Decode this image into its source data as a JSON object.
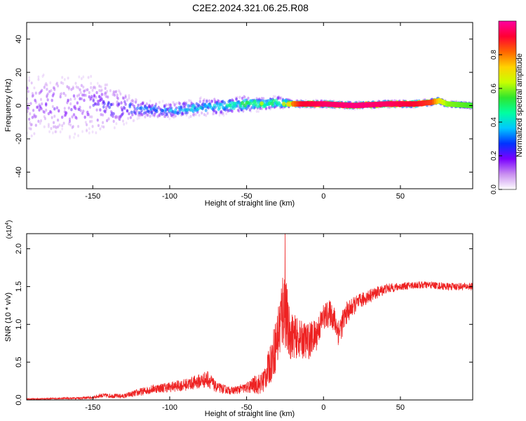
{
  "figure": {
    "title": "C2E2.2024.321.06.25.R08"
  },
  "chart_data": [
    {
      "type": "heatmap",
      "xlabel": "Height of straight line (km)",
      "ylabel": "Frequency (Hz)",
      "xlim": [
        -193,
        97
      ],
      "ylim": [
        -50,
        50
      ],
      "x_ticks": [
        -150,
        -100,
        -50,
        0,
        50
      ],
      "y_ticks": [
        -40,
        -20,
        0,
        20,
        40
      ],
      "grid": false,
      "colorbar": {
        "label": "Normalized spectral amplitude",
        "range": [
          0,
          1
        ],
        "ticks": [
          0.0,
          0.2,
          0.4,
          0.6,
          0.8
        ],
        "colormap": [
          "#ffffff",
          "#c98ff0",
          "#7a00ff",
          "#0033ff",
          "#00c8ff",
          "#00ffa0",
          "#2ee62e",
          "#c8ff00",
          "#ffd200",
          "#ff6400",
          "#ff0033",
          "#ff00a0"
        ]
      },
      "center_line": {
        "x": [
          -193,
          -150,
          -120,
          -100,
          -80,
          -60,
          -50,
          -40,
          -30,
          -20,
          -15,
          0,
          20,
          40,
          60,
          70,
          75,
          80,
          97
        ],
        "freq": [
          0,
          0,
          -2,
          -3,
          -1,
          0,
          1,
          1,
          2,
          1,
          1,
          1,
          0,
          1,
          1,
          2,
          3,
          1,
          0
        ],
        "max_amplitude": [
          0.18,
          0.2,
          0.3,
          0.35,
          0.4,
          0.45,
          0.55,
          0.6,
          0.55,
          0.8,
          0.9,
          0.95,
          0.97,
          0.95,
          0.9,
          0.85,
          0.7,
          0.6,
          0.55
        ],
        "spread_hz": [
          40,
          35,
          10,
          8,
          9,
          8,
          8,
          6,
          6,
          3,
          3,
          3,
          3,
          3,
          3,
          3,
          3,
          3,
          3
        ]
      }
    },
    {
      "type": "line",
      "xlabel": "Height of straight line (km)",
      "ylabel": "SNR (10 * v/v)",
      "y_multiplier": "(x10^4)",
      "xlim": [
        -193,
        97
      ],
      "ylim": [
        0,
        2.2
      ],
      "x_ticks": [
        -150,
        -100,
        -50,
        0,
        50
      ],
      "y_ticks": [
        0.0,
        0.5,
        1.0,
        1.5,
        2.0
      ],
      "series": [
        {
          "color": "#ee2222",
          "x": [
            -193,
            -170,
            -150,
            -145,
            -130,
            -120,
            -110,
            -100,
            -90,
            -80,
            -75,
            -70,
            -60,
            -50,
            -45,
            -40,
            -35,
            -30,
            -27,
            -25,
            -23,
            -20,
            -15,
            -10,
            -5,
            0,
            5,
            10,
            15,
            20,
            25,
            30,
            35,
            40,
            50,
            60,
            70,
            80,
            90,
            97
          ],
          "y": [
            0.01,
            0.02,
            0.03,
            0.06,
            0.05,
            0.1,
            0.15,
            0.17,
            0.2,
            0.25,
            0.28,
            0.17,
            0.12,
            0.16,
            0.2,
            0.22,
            0.45,
            0.8,
            1.15,
            1.3,
            0.9,
            0.85,
            0.8,
            0.78,
            0.85,
            1.1,
            1.15,
            0.9,
            1.15,
            1.25,
            1.32,
            1.38,
            1.42,
            1.47,
            1.5,
            1.52,
            1.52,
            1.5,
            1.5,
            1.5
          ],
          "noise": [
            0.01,
            0.01,
            0.02,
            0.03,
            0.03,
            0.05,
            0.06,
            0.07,
            0.08,
            0.1,
            0.12,
            0.07,
            0.05,
            0.07,
            0.12,
            0.15,
            0.25,
            0.4,
            0.55,
            0.6,
            0.4,
            0.3,
            0.25,
            0.25,
            0.22,
            0.18,
            0.18,
            0.2,
            0.15,
            0.12,
            0.1,
            0.09,
            0.08,
            0.07,
            0.05,
            0.05,
            0.05,
            0.05,
            0.05,
            0.05
          ],
          "annotated_peak": {
            "x": -25,
            "y": 2.2
          }
        }
      ]
    }
  ]
}
